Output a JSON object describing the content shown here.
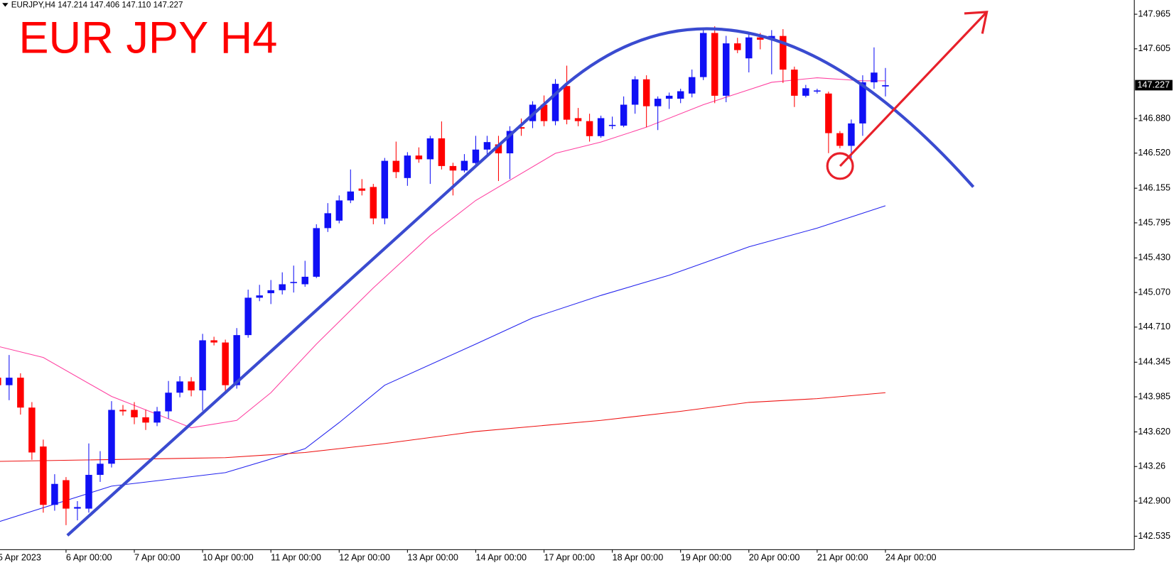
{
  "chart_data": {
    "type": "candlestick",
    "header": "EURJPY,H4  147.214 147.406 147.110 147.227",
    "title": "EUR JPY H4",
    "up_color": "#1010f5",
    "down_color": "#ff0000",
    "categories": [
      "5 Apr 2023",
      null,
      null,
      null,
      null,
      null,
      "6 Apr 00:00",
      null,
      null,
      null,
      null,
      null,
      "7 Apr 00:00",
      null,
      null,
      null,
      null,
      null,
      "10 Apr 00:00",
      null,
      null,
      null,
      null,
      null,
      "11 Apr 00:00",
      null,
      null,
      null,
      null,
      null,
      "12 Apr 00:00",
      null,
      null,
      null,
      null,
      null,
      "13 Apr 00:00",
      null,
      null,
      null,
      null,
      null,
      "14 Apr 00:00",
      null,
      null,
      null,
      null,
      null,
      "17 Apr 00:00",
      null,
      null,
      null,
      null,
      null,
      "18 Apr 00:00",
      null,
      null,
      null,
      null,
      null,
      "19 Apr 00:00",
      null,
      null,
      null,
      null,
      null,
      "20 Apr 00:00",
      null,
      null,
      null,
      null,
      null,
      "21 Apr 00:00",
      null,
      null,
      null,
      null,
      null,
      "24 Apr 00:00"
    ],
    "open": [
      144.184,
      144.106,
      144.184,
      143.873,
      143.468,
      142.861,
      143.118,
      142.822,
      142.822,
      143.173,
      143.289,
      143.849,
      143.849,
      143.772,
      143.717,
      143.834,
      144.028,
      144.145,
      144.052,
      144.573,
      144.55,
      144.106,
      144.627,
      145.016,
      145.063,
      145.094,
      145.172,
      145.156,
      145.234,
      145.74,
      145.818,
      146.028,
      146.152,
      146.168,
      145.841,
      146.44,
      146.261,
      146.495,
      146.456,
      146.674,
      146.386,
      146.339,
      146.417,
      146.557,
      146.611,
      146.518,
      146.79,
      146.853,
      147.024,
      146.853,
      147.218,
      146.884,
      146.853,
      146.697,
      146.806,
      146.806,
      147.024,
      147.288,
      147.008,
      147.086,
      147.086,
      147.14,
      147.311,
      147.77,
      147.117,
      147.662,
      147.506,
      147.724,
      147.708,
      147.739,
      147.389,
      147.117,
      147.164,
      147.14,
      146.728,
      146.596,
      146.829,
      147.257,
      147.214
    ],
    "high": [
      144.34,
      144.42,
      144.23,
      143.93,
      143.54,
      143.18,
      143.15,
      142.9,
      143.5,
      143.42,
      143.94,
      143.9,
      143.93,
      143.85,
      143.88,
      144.15,
      144.2,
      144.19,
      144.64,
      144.61,
      144.58,
      144.7,
      145.1,
      145.15,
      145.2,
      145.28,
      145.35,
      145.4,
      145.78,
      146.0,
      146.08,
      146.35,
      146.25,
      146.2,
      146.47,
      146.64,
      146.53,
      146.58,
      146.7,
      146.85,
      146.42,
      146.51,
      146.7,
      146.7,
      146.7,
      146.8,
      146.88,
      147.06,
      147.12,
      147.29,
      147.43,
      146.99,
      146.93,
      146.91,
      146.9,
      147.11,
      147.32,
      147.33,
      147.11,
      147.15,
      147.19,
      147.39,
      147.8,
      147.84,
      147.74,
      147.72,
      147.76,
      147.77,
      147.8,
      147.81,
      147.42,
      147.23,
      147.19,
      147.16,
      146.75,
      146.87,
      147.33,
      147.62,
      147.406
    ],
    "low": [
      144.03,
      143.95,
      143.8,
      143.33,
      142.78,
      142.8,
      142.65,
      142.7,
      142.78,
      143.1,
      143.25,
      143.79,
      143.7,
      143.64,
      143.68,
      143.76,
      143.98,
      143.99,
      143.84,
      144.52,
      144.02,
      144.07,
      144.6,
      144.98,
      144.95,
      145.05,
      145.07,
      145.13,
      145.22,
      145.7,
      145.79,
      146.0,
      146.08,
      145.78,
      145.78,
      146.26,
      146.18,
      146.42,
      146.2,
      146.35,
      146.08,
      146.32,
      146.39,
      146.5,
      146.23,
      146.25,
      146.7,
      146.78,
      146.8,
      146.81,
      146.82,
      146.8,
      146.64,
      146.68,
      146.77,
      146.79,
      146.93,
      146.79,
      146.76,
      146.98,
      147.04,
      147.1,
      147.28,
      147.04,
      147.05,
      147.56,
      147.36,
      147.6,
      147.34,
      147.25,
      147.0,
      147.1,
      147.14,
      146.52,
      146.57,
      146.47,
      146.7,
      147.19,
      147.11
    ],
    "close": [
      144.106,
      144.184,
      143.873,
      143.406,
      142.861,
      143.079,
      142.822,
      142.838,
      143.173,
      143.289,
      143.849,
      143.834,
      143.772,
      143.717,
      143.834,
      144.028,
      144.145,
      144.052,
      144.573,
      144.55,
      144.106,
      144.627,
      145.016,
      145.04,
      145.094,
      145.156,
      145.18,
      145.234,
      145.74,
      145.895,
      146.028,
      146.121,
      146.129,
      145.841,
      146.44,
      146.323,
      146.495,
      146.456,
      146.674,
      146.386,
      146.339,
      146.44,
      146.557,
      146.635,
      146.518,
      146.751,
      146.775,
      147.024,
      146.853,
      147.241,
      146.868,
      146.853,
      146.697,
      146.884,
      146.814,
      147.024,
      147.288,
      147.008,
      147.086,
      147.117,
      147.164,
      147.311,
      147.77,
      147.117,
      147.662,
      147.592,
      147.724,
      147.7,
      147.739,
      147.389,
      147.117,
      147.195,
      147.172,
      146.728,
      146.596,
      146.829,
      147.257,
      147.358,
      147.227
    ],
    "current_price": 147.227,
    "overlays": [
      {
        "color": "#ff3fa0",
        "x": [
          0,
          4,
          10,
          17,
          21,
          24,
          28,
          33,
          38,
          42,
          49,
          53,
          57,
          62,
          68,
          72,
          76,
          78
        ],
        "values": [
          144.511,
          144.394,
          143.989,
          143.663,
          143.74,
          144.028,
          144.534,
          145.118,
          145.662,
          146.028,
          146.518,
          146.635,
          146.79,
          147.024,
          147.257,
          147.304,
          147.272,
          147.272
        ]
      },
      {
        "color": "#2222ee",
        "x": [
          0,
          10,
          20,
          27,
          30,
          34,
          42,
          47,
          53,
          59,
          66,
          72,
          78
        ],
        "values": [
          142.682,
          143.056,
          143.196,
          143.445,
          143.717,
          144.106,
          144.534,
          144.806,
          145.04,
          145.25,
          145.545,
          145.74,
          145.973
        ]
      },
      {
        "color": "#ee1111",
        "x": [
          0,
          20,
          27,
          34,
          42,
          53,
          60,
          66,
          72,
          78
        ],
        "values": [
          143.313,
          143.352,
          143.406,
          143.499,
          143.624,
          143.74,
          143.834,
          143.927,
          143.966,
          144.028
        ]
      }
    ],
    "ylim": [
      142.395,
      148.113
    ],
    "yticks": [
      147.965,
      147.605,
      {
        "value": 146.88,
        "label": "146.880"
      },
      {
        "value": 146.52,
        "label": "146.520"
      },
      146.155,
      145.795,
      {
        "value": 145.43,
        "label": "145.430"
      },
      {
        "value": 145.07,
        "label": "145.070"
      },
      {
        "value": 144.71,
        "label": "144.710"
      },
      144.345,
      143.985,
      {
        "value": 143.62,
        "label": "143.620"
      },
      143.26,
      {
        "value": 142.9,
        "label": "142.900"
      },
      142.535
    ]
  }
}
